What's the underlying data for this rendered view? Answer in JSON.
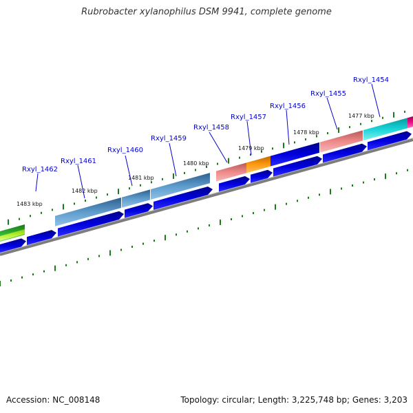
{
  "title": "Rubrobacter xylanophilus DSM 9941, complete genome",
  "footer": {
    "accession": "Accession: NC_008148",
    "summary": "Topology: circular; Length: 3,225,748 bp; Genes: 3,203"
  },
  "genes": [
    {
      "name": "Rxyl_1462"
    },
    {
      "name": "Rxyl_1461"
    },
    {
      "name": "Rxyl_1460"
    },
    {
      "name": "Rxyl_1459"
    },
    {
      "name": "Rxyl_1458"
    },
    {
      "name": "Rxyl_1457"
    },
    {
      "name": "Rxyl_1456"
    },
    {
      "name": "Rxyl_1455"
    },
    {
      "name": "Rxyl_1454"
    }
  ],
  "kbp_labels": [
    "1483 kbp",
    "1482 kbp",
    "1481 kbp",
    "1480 kbp",
    "1479 kbp",
    "1478 kbp",
    "1477 kbp"
  ],
  "colors": {
    "backbone": "#808080",
    "cds": "#0000ee",
    "tick": "#1a7a1a",
    "steelblue": "#4a86b8",
    "salmon": "#e88080",
    "orange": "#f08c00",
    "darkblue": "#0000cc",
    "cyan": "#10c4c8",
    "magenta": "#e0007a",
    "green": "#22a822",
    "lime": "#aaee22"
  }
}
